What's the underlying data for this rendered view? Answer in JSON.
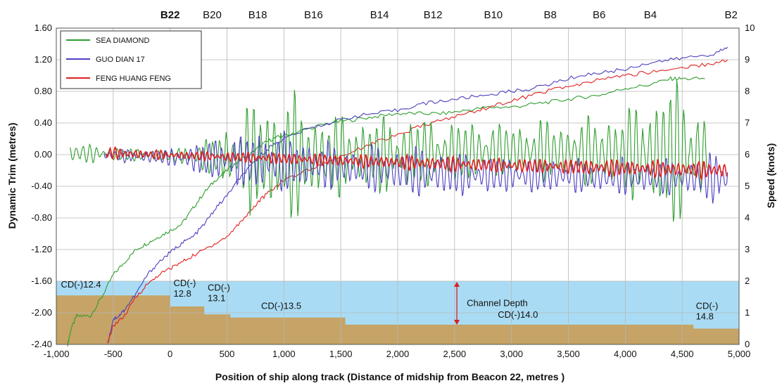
{
  "chart_data": {
    "type": "line",
    "xlabel": "Position of ship along track (Distance of midship from Beacon 22, metres )",
    "ylabel_left": "Dynamic Trim (metres)",
    "ylabel_right": "Speed (knots)",
    "xlim": [
      -1000,
      5000
    ],
    "ylim_left": [
      -2.4,
      1.6
    ],
    "ylim_right": [
      0,
      10
    ],
    "x_ticks": [
      -1000,
      -500,
      0,
      500,
      1000,
      1500,
      2000,
      2500,
      3000,
      3500,
      4000,
      4500,
      5000
    ],
    "x_tick_labels": [
      "-1,000",
      "-500",
      "0",
      "500",
      "1,000",
      "1,500",
      "2,000",
      "2,500",
      "3,000",
      "3,500",
      "4,000",
      "4,500",
      "5,000"
    ],
    "y_left_ticks": [
      -2.4,
      -2.0,
      -1.6,
      -1.2,
      -0.8,
      -0.4,
      0.0,
      0.4,
      0.8,
      1.2,
      1.6
    ],
    "y_left_tick_labels": [
      "-2.40",
      "-2.00",
      "-1.60",
      "-1.20",
      "-0.80",
      "-0.40",
      "0.00",
      "0.40",
      "0.80",
      "1.20",
      "1.60"
    ],
    "y_right_ticks": [
      0,
      1,
      2,
      3,
      4,
      5,
      6,
      7,
      8,
      9,
      10
    ],
    "y_right_tick_labels": [
      "0",
      "1",
      "2",
      "3",
      "4",
      "5",
      "6",
      "7",
      "8",
      "9",
      "10"
    ],
    "grid": true,
    "beacons": [
      {
        "label": "B22",
        "x": 0,
        "bold": true
      },
      {
        "label": "B20",
        "x": 370,
        "bold": false
      },
      {
        "label": "B18",
        "x": 770,
        "bold": false
      },
      {
        "label": "B16",
        "x": 1260,
        "bold": false
      },
      {
        "label": "B14",
        "x": 1840,
        "bold": false
      },
      {
        "label": "B12",
        "x": 2310,
        "bold": false
      },
      {
        "label": "B10",
        "x": 2840,
        "bold": false
      },
      {
        "label": "B8",
        "x": 3340,
        "bold": false
      },
      {
        "label": "B6",
        "x": 3770,
        "bold": false
      },
      {
        "label": "B4",
        "x": 4220,
        "bold": false
      },
      {
        "label": "B2",
        "x": 4930,
        "bold": false
      }
    ],
    "legend": {
      "placement": "top-left",
      "entries": [
        {
          "name": "SEA DIAMOND",
          "color": "#2e9e2e"
        },
        {
          "name": "GUO DIAN 17",
          "color": "#4b3fc0"
        },
        {
          "name": "FENG HUANG FENG",
          "color": "#e02020"
        }
      ]
    },
    "water_color": "#a9dcf4",
    "seabed_color": "#c6a366",
    "channel_depth_label": "Channel Depth",
    "seabed_profile": [
      {
        "x": -1000,
        "depth": -1.78
      },
      {
        "x": 0,
        "depth": -1.78
      },
      {
        "x": 0,
        "depth": -1.92
      },
      {
        "x": 300,
        "depth": -1.92
      },
      {
        "x": 300,
        "depth": -2.02
      },
      {
        "x": 530,
        "depth": -2.02
      },
      {
        "x": 530,
        "depth": -2.06
      },
      {
        "x": 1540,
        "depth": -2.06
      },
      {
        "x": 1540,
        "depth": -2.15
      },
      {
        "x": 4600,
        "depth": -2.15
      },
      {
        "x": 4600,
        "depth": -2.2
      },
      {
        "x": 5000,
        "depth": -2.2
      }
    ],
    "depth_labels": [
      {
        "lines": [
          "CD(-)12.4"
        ],
        "x": -960,
        "y": -1.68
      },
      {
        "lines": [
          "CD(-)",
          "12.8"
        ],
        "x": 30,
        "y": -1.66
      },
      {
        "lines": [
          "CD(-)",
          "13.1"
        ],
        "x": 330,
        "y": -1.72
      },
      {
        "lines": [
          "CD(-)13.5"
        ],
        "x": 800,
        "y": -1.95
      },
      {
        "lines": [
          "CD(-)14.0"
        ],
        "x": 2880,
        "y": -2.06
      },
      {
        "lines": [
          "CD(-)",
          "14.8"
        ],
        "x": 4620,
        "y": -1.95
      }
    ],
    "channel_depth_arrow": {
      "x": 2520,
      "from": -1.6,
      "to": -2.16
    },
    "speed_series": [
      {
        "name": "SEA DIAMOND",
        "color": "#2e9e2e",
        "x": [
          -900,
          -870,
          -820,
          -700,
          -600,
          -500,
          -400,
          -300,
          -200,
          -100,
          0,
          100,
          200,
          300,
          400,
          500,
          600,
          700,
          800,
          900,
          1000,
          1200,
          1400,
          1600,
          1800,
          2000,
          2200,
          2400,
          2600,
          2800,
          3000,
          3200,
          3400,
          3600,
          3800,
          4000,
          4200,
          4400,
          4500,
          4700
        ],
        "values": [
          0,
          0.5,
          0.9,
          0.9,
          1.5,
          2.2,
          2.6,
          3.0,
          3.2,
          3.4,
          3.6,
          3.8,
          4.3,
          4.8,
          5.2,
          5.5,
          5.8,
          6.0,
          6.3,
          6.5,
          6.6,
          6.8,
          7.0,
          7.1,
          7.2,
          7.3,
          7.3,
          7.3,
          7.4,
          7.5,
          7.5,
          7.6,
          7.7,
          7.8,
          7.9,
          8.1,
          8.2,
          8.4,
          8.4,
          8.4
        ]
      },
      {
        "name": "GUO DIAN 17",
        "color": "#4b3fc0",
        "x": [
          -550,
          -500,
          -450,
          -400,
          -300,
          -200,
          -100,
          0,
          100,
          200,
          300,
          400,
          500,
          600,
          700,
          800,
          900,
          1000,
          1200,
          1400,
          1600,
          1800,
          2000,
          2200,
          2400,
          2600,
          2800,
          3000,
          3200,
          3400,
          3600,
          3800,
          4000,
          4200,
          4400,
          4600,
          4800,
          4900
        ],
        "values": [
          0,
          0.8,
          0.9,
          1.1,
          1.6,
          2.2,
          2.6,
          2.9,
          3.2,
          3.4,
          3.8,
          4.3,
          4.7,
          5.2,
          5.6,
          6.0,
          6.3,
          6.5,
          6.8,
          7.0,
          7.2,
          7.3,
          7.4,
          7.6,
          7.7,
          7.8,
          7.9,
          8.0,
          8.1,
          8.3,
          8.5,
          8.6,
          8.7,
          8.9,
          9.0,
          9.1,
          9.2,
          9.4
        ]
      },
      {
        "name": "FENG HUANG FENG",
        "color": "#e02020",
        "x": [
          -550,
          -500,
          -400,
          -300,
          -200,
          -100,
          0,
          100,
          200,
          300,
          400,
          500,
          600,
          700,
          800,
          900,
          1000,
          1200,
          1400,
          1600,
          1800,
          2000,
          2200,
          2400,
          2600,
          2800,
          3000,
          3200,
          3400,
          3600,
          3800,
          4000,
          4200,
          4400,
          4600,
          4800,
          4900
        ],
        "values": [
          0,
          0.6,
          0.9,
          1.5,
          1.9,
          2.2,
          2.4,
          2.6,
          2.8,
          3.0,
          3.2,
          3.4,
          3.8,
          4.2,
          4.6,
          4.9,
          5.2,
          5.5,
          5.8,
          6.1,
          6.4,
          6.6,
          6.9,
          7.1,
          7.3,
          7.5,
          7.7,
          7.9,
          8.1,
          8.2,
          8.4,
          8.5,
          8.6,
          8.7,
          8.8,
          8.9,
          9.0
        ]
      }
    ],
    "trim_series": [
      {
        "name": "SEA DIAMOND",
        "color": "#2e9e2e",
        "x_start": -880,
        "x_end": 4720,
        "period": 60,
        "amplitude": [
          {
            "x": -880,
            "a": 0.15
          },
          {
            "x": -500,
            "a": 0.1
          },
          {
            "x": 0,
            "a": 0.08
          },
          {
            "x": 400,
            "a": 0.3
          },
          {
            "x": 700,
            "a": 0.75
          },
          {
            "x": 1000,
            "a": 0.9
          },
          {
            "x": 1500,
            "a": 0.55
          },
          {
            "x": 2000,
            "a": 0.55
          },
          {
            "x": 2500,
            "a": 0.45
          },
          {
            "x": 3000,
            "a": 0.4
          },
          {
            "x": 3500,
            "a": 0.45
          },
          {
            "x": 4000,
            "a": 0.6
          },
          {
            "x": 4450,
            "a": 1.1
          },
          {
            "x": 4720,
            "a": 0.5
          }
        ],
        "mean": [
          {
            "x": -880,
            "m": 0.02
          },
          {
            "x": 1000,
            "m": -0.05
          },
          {
            "x": 3000,
            "m": 0.05
          },
          {
            "x": 4720,
            "m": 0.0
          }
        ]
      },
      {
        "name": "GUO DIAN 17",
        "color": "#4b3fc0",
        "x_start": -580,
        "x_end": 4900,
        "period": 55,
        "amplitude": [
          {
            "x": -580,
            "a": 0.08
          },
          {
            "x": 0,
            "a": 0.12
          },
          {
            "x": 500,
            "a": 0.35
          },
          {
            "x": 900,
            "a": 0.45
          },
          {
            "x": 1500,
            "a": 0.3
          },
          {
            "x": 2200,
            "a": 0.35
          },
          {
            "x": 3000,
            "a": 0.25
          },
          {
            "x": 3800,
            "a": 0.25
          },
          {
            "x": 4500,
            "a": 0.25
          },
          {
            "x": 4900,
            "a": 0.4
          }
        ],
        "mean": [
          {
            "x": -580,
            "m": 0.0
          },
          {
            "x": 1000,
            "m": -0.1
          },
          {
            "x": 2500,
            "m": -0.25
          },
          {
            "x": 4900,
            "m": -0.3
          }
        ]
      },
      {
        "name": "FENG HUANG FENG",
        "color": "#e02020",
        "x_start": -560,
        "x_end": 4900,
        "period": 45,
        "amplitude": [
          {
            "x": -560,
            "a": 0.08
          },
          {
            "x": 0,
            "a": 0.06
          },
          {
            "x": 1000,
            "a": 0.08
          },
          {
            "x": 2000,
            "a": 0.1
          },
          {
            "x": 3000,
            "a": 0.1
          },
          {
            "x": 4000,
            "a": 0.12
          },
          {
            "x": 4900,
            "a": 0.12
          }
        ],
        "mean": [
          {
            "x": -560,
            "m": 0.02
          },
          {
            "x": 1000,
            "m": -0.05
          },
          {
            "x": 2500,
            "m": -0.12
          },
          {
            "x": 4900,
            "m": -0.2
          }
        ]
      }
    ]
  }
}
